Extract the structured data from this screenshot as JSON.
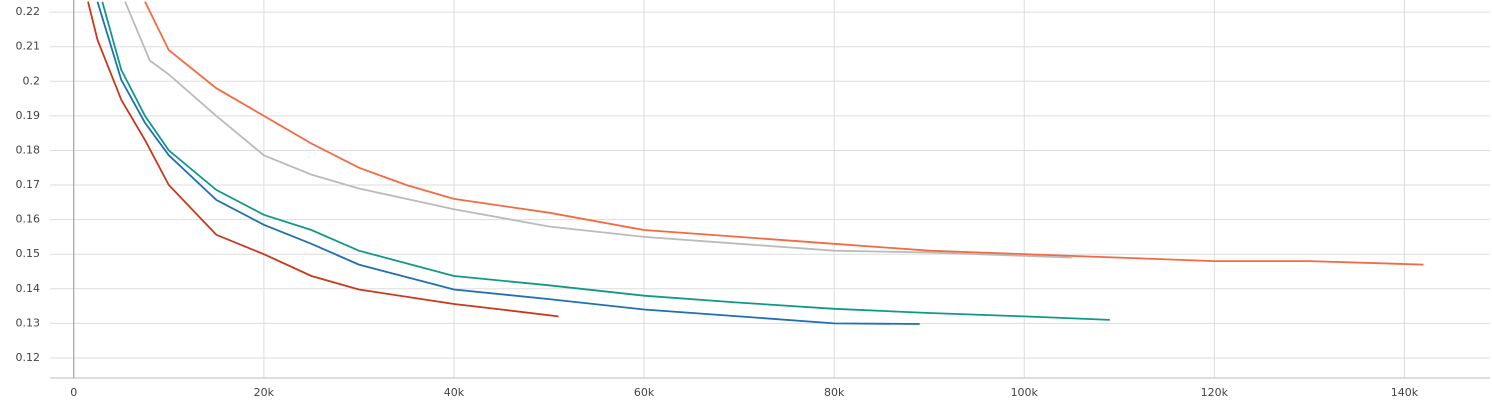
{
  "chart_data": {
    "type": "line",
    "xlim": [
      -2500,
      149000
    ],
    "ylim": [
      0.1142,
      0.2235
    ],
    "xticks": [
      {
        "value": 0,
        "label": "0"
      },
      {
        "value": 20000,
        "label": "20k"
      },
      {
        "value": 40000,
        "label": "40k"
      },
      {
        "value": 60000,
        "label": "60k"
      },
      {
        "value": 80000,
        "label": "80k"
      },
      {
        "value": 100000,
        "label": "100k"
      },
      {
        "value": 120000,
        "label": "120k"
      },
      {
        "value": 140000,
        "label": "140k"
      }
    ],
    "yticks": [
      0.12,
      0.13,
      0.14,
      0.15,
      0.16,
      0.17,
      0.18,
      0.19,
      0.2,
      0.21,
      0.22
    ],
    "grid": true,
    "series": [
      {
        "color": "#f26b43",
        "x": [
          7500,
          10000,
          15000,
          20000,
          25000,
          30000,
          35000,
          40000,
          50000,
          60000,
          70000,
          80000,
          90000,
          100000,
          110000,
          120000,
          130000,
          142000
        ],
        "values": [
          0.223,
          0.209,
          0.198,
          0.19,
          0.182,
          0.175,
          0.17,
          0.166,
          0.162,
          0.157,
          0.155,
          0.153,
          0.151,
          0.15,
          0.149,
          0.148,
          0.148,
          0.147
        ]
      },
      {
        "color": "#bbbbbb",
        "x": [
          5400,
          8000,
          10000,
          15000,
          20000,
          25000,
          30000,
          40000,
          50000,
          60000,
          70000,
          80000,
          90000,
          100000,
          105000
        ],
        "values": [
          0.223,
          0.206,
          0.202,
          0.19,
          0.1786,
          0.173,
          0.169,
          0.163,
          0.158,
          0.155,
          0.153,
          0.151,
          0.1505,
          0.1495,
          0.149
        ]
      },
      {
        "color": "#119988",
        "x": [
          3000,
          5000,
          7500,
          10000,
          15000,
          20000,
          25000,
          30000,
          40000,
          50000,
          60000,
          70000,
          80000,
          90000,
          100000,
          109000
        ],
        "values": [
          0.223,
          0.2033,
          0.19,
          0.18,
          0.1686,
          0.1614,
          0.157,
          0.151,
          0.1437,
          0.141,
          0.138,
          0.136,
          0.1342,
          0.133,
          0.132,
          0.131
        ]
      },
      {
        "color": "#1f70b4",
        "x": [
          2500,
          5000,
          7500,
          10000,
          15000,
          20000,
          25000,
          30000,
          40000,
          50000,
          60000,
          70000,
          80000,
          89000
        ],
        "values": [
          0.223,
          0.2004,
          0.188,
          0.1786,
          0.1657,
          0.1585,
          0.153,
          0.147,
          0.1398,
          0.137,
          0.134,
          0.132,
          0.13,
          0.1298
        ]
      },
      {
        "color": "#c9381b",
        "x": [
          1500,
          2500,
          5000,
          7500,
          10000,
          15000,
          20000,
          25000,
          30000,
          40000,
          45000,
          51000
        ],
        "values": [
          0.223,
          0.212,
          0.1946,
          0.183,
          0.17,
          0.1556,
          0.15,
          0.1437,
          0.1398,
          0.1356,
          0.134,
          0.132
        ]
      }
    ]
  }
}
